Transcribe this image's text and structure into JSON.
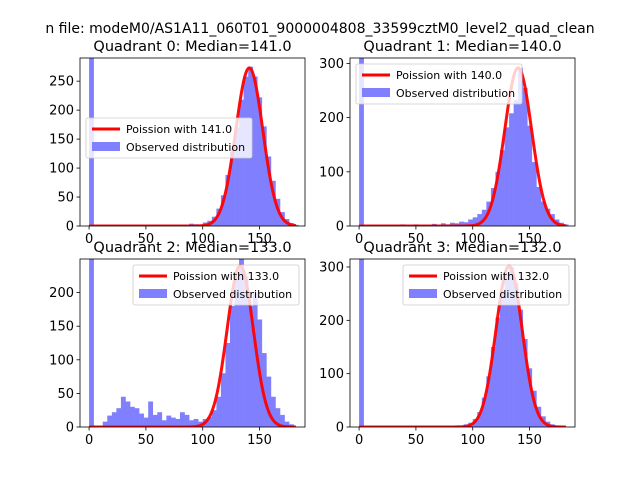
{
  "suptitle": "n file: modeM0/AS1A11_060T01_9000004808_33599cztM0_level2_quad_clean",
  "colors": {
    "poisson": "#ff0000",
    "hist": "#8080ff"
  },
  "chart_data": [
    {
      "type": "bar",
      "title": "Quadrant 0: Median=141.0",
      "median": 141.0,
      "xlim": [
        -8,
        190
      ],
      "ylim": [
        0,
        290
      ],
      "xticks": [
        0,
        50,
        100,
        150
      ],
      "yticks": [
        0,
        50,
        100,
        150,
        200,
        250
      ],
      "bin_width": 4,
      "legend": {
        "position": "center-left",
        "entries": [
          "Poission with 141.0",
          "Observed distribution"
        ]
      },
      "hist_bins": [
        [
          0,
          290
        ],
        [
          80,
          2
        ],
        [
          88,
          4
        ],
        [
          92,
          3
        ],
        [
          96,
          2
        ],
        [
          100,
          6
        ],
        [
          104,
          9
        ],
        [
          108,
          16
        ],
        [
          112,
          30
        ],
        [
          116,
          53
        ],
        [
          120,
          88
        ],
        [
          124,
          128
        ],
        [
          128,
          170
        ],
        [
          132,
          218
        ],
        [
          136,
          258
        ],
        [
          140,
          275
        ],
        [
          144,
          258
        ],
        [
          148,
          222
        ],
        [
          152,
          172
        ],
        [
          156,
          120
        ],
        [
          160,
          78
        ],
        [
          164,
          47
        ],
        [
          168,
          24
        ],
        [
          172,
          12
        ],
        [
          176,
          5
        ],
        [
          180,
          2
        ]
      ],
      "poisson_lambda": 141.0,
      "poisson_peak": 273
    },
    {
      "type": "bar",
      "title": "Quadrant 1: Median=140.0",
      "median": 140.0,
      "xlim": [
        -8,
        190
      ],
      "ylim": [
        0,
        310
      ],
      "xticks": [
        0,
        50,
        100,
        150
      ],
      "yticks": [
        0,
        100,
        200,
        300
      ],
      "bin_width": 4,
      "legend": {
        "position": "upper-left",
        "entries": [
          "Poission with 140.0",
          "Observed distribution"
        ]
      },
      "hist_bins": [
        [
          0,
          310
        ],
        [
          24,
          2
        ],
        [
          36,
          3
        ],
        [
          48,
          3
        ],
        [
          56,
          2
        ],
        [
          64,
          4
        ],
        [
          72,
          5
        ],
        [
          76,
          3
        ],
        [
          80,
          6
        ],
        [
          84,
          5
        ],
        [
          88,
          8
        ],
        [
          92,
          7
        ],
        [
          96,
          12
        ],
        [
          100,
          16
        ],
        [
          104,
          22
        ],
        [
          108,
          30
        ],
        [
          112,
          45
        ],
        [
          116,
          70
        ],
        [
          120,
          100
        ],
        [
          124,
          140
        ],
        [
          128,
          182
        ],
        [
          132,
          208
        ],
        [
          136,
          232
        ],
        [
          140,
          292
        ],
        [
          144,
          255
        ],
        [
          148,
          185
        ],
        [
          152,
          118
        ],
        [
          156,
          72
        ],
        [
          160,
          45
        ],
        [
          164,
          32
        ],
        [
          168,
          22
        ],
        [
          172,
          12
        ],
        [
          176,
          6
        ],
        [
          180,
          3
        ]
      ],
      "poisson_lambda": 140.0,
      "poisson_peak": 292
    },
    {
      "type": "bar",
      "title": "Quadrant 2: Median=133.0",
      "median": 133.0,
      "xlim": [
        -8,
        190
      ],
      "ylim": [
        0,
        250
      ],
      "xticks": [
        0,
        50,
        100,
        150
      ],
      "yticks": [
        0,
        50,
        100,
        150,
        200
      ],
      "bin_width": 4,
      "legend": {
        "position": "upper-right",
        "entries": [
          "Poission with 133.0",
          "Observed distribution"
        ]
      },
      "hist_bins": [
        [
          0,
          250
        ],
        [
          12,
          8
        ],
        [
          16,
          17
        ],
        [
          20,
          22
        ],
        [
          24,
          28
        ],
        [
          28,
          45
        ],
        [
          32,
          38
        ],
        [
          36,
          30
        ],
        [
          40,
          28
        ],
        [
          44,
          20
        ],
        [
          48,
          14
        ],
        [
          52,
          38
        ],
        [
          56,
          18
        ],
        [
          60,
          22
        ],
        [
          64,
          10
        ],
        [
          68,
          17
        ],
        [
          72,
          14
        ],
        [
          76,
          12
        ],
        [
          80,
          22
        ],
        [
          84,
          18
        ],
        [
          88,
          10
        ],
        [
          92,
          12
        ],
        [
          96,
          8
        ],
        [
          100,
          12
        ],
        [
          104,
          15
        ],
        [
          108,
          25
        ],
        [
          112,
          45
        ],
        [
          116,
          80
        ],
        [
          120,
          125
        ],
        [
          124,
          180
        ],
        [
          128,
          225
        ],
        [
          132,
          250
        ],
        [
          136,
          225
        ],
        [
          140,
          180
        ],
        [
          144,
          200
        ],
        [
          148,
          160
        ],
        [
          152,
          110
        ],
        [
          156,
          75
        ],
        [
          160,
          45
        ],
        [
          164,
          28
        ],
        [
          168,
          18
        ],
        [
          172,
          8
        ],
        [
          176,
          4
        ]
      ],
      "poisson_lambda": 133.0,
      "poisson_peak": 240
    },
    {
      "type": "bar",
      "title": "Quadrant 3: Median=132.0",
      "median": 132.0,
      "xlim": [
        -8,
        190
      ],
      "ylim": [
        0,
        315
      ],
      "xticks": [
        0,
        50,
        100,
        150
      ],
      "yticks": [
        0,
        100,
        200,
        300
      ],
      "bin_width": 4,
      "legend": {
        "position": "upper-right",
        "entries": [
          "Poission with 132.0",
          "Observed distribution"
        ]
      },
      "hist_bins": [
        [
          0,
          315
        ],
        [
          84,
          3
        ],
        [
          92,
          5
        ],
        [
          96,
          8
        ],
        [
          100,
          15
        ],
        [
          104,
          28
        ],
        [
          108,
          55
        ],
        [
          112,
          95
        ],
        [
          116,
          150
        ],
        [
          120,
          205
        ],
        [
          124,
          255
        ],
        [
          128,
          290
        ],
        [
          132,
          300
        ],
        [
          136,
          270
        ],
        [
          140,
          220
        ],
        [
          144,
          165
        ],
        [
          148,
          110
        ],
        [
          152,
          68
        ],
        [
          156,
          38
        ],
        [
          160,
          20
        ],
        [
          164,
          10
        ],
        [
          168,
          5
        ],
        [
          172,
          2
        ]
      ],
      "poisson_lambda": 132.0,
      "poisson_peak": 302
    }
  ]
}
